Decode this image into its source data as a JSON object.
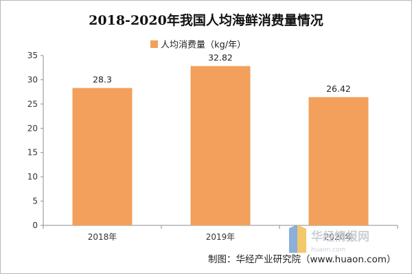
{
  "chart_data": {
    "type": "bar",
    "title": "2018-2020年我国人均海鲜消费量情况",
    "categories": [
      "2018年",
      "2019年",
      "2020年"
    ],
    "series": [
      {
        "name": "人均消费量（kg/年）",
        "values": [
          28.3,
          32.82,
          26.42
        ],
        "color": "#F4A460"
      }
    ],
    "value_labels": [
      "28.3",
      "32.82",
      "26.42"
    ],
    "ylim": [
      0,
      35
    ],
    "yticks": [
      0,
      5,
      10,
      15,
      20,
      25,
      30,
      35
    ],
    "grid": false,
    "legend_position": "top-center",
    "bar_color": "#F2A05B"
  },
  "source_text": "制图：华经产业研究院（www.huaon.com）",
  "watermark": {
    "text": "华经情报网",
    "url_text": "huaon.com",
    "color": "#C6CBD3"
  }
}
